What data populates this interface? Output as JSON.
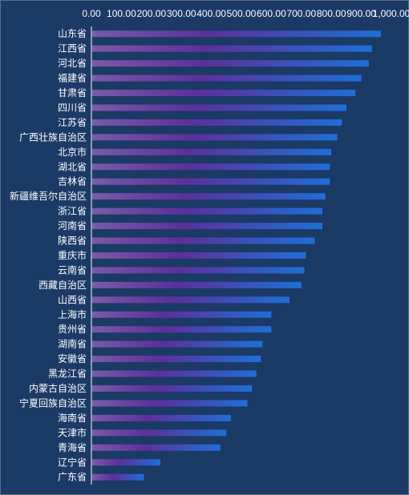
{
  "chart_data": {
    "type": "bar",
    "orientation": "horizontal",
    "title": "",
    "xlabel": "",
    "ylabel": "",
    "xlim": [
      0,
      1000
    ],
    "x_ticks": [
      "0.00",
      "100.00",
      "200.00",
      "300.00",
      "400.00",
      "500.00",
      "600.00",
      "700.00",
      "800.00",
      "900.00",
      "1,000.00"
    ],
    "x_axis_position": "top",
    "grid": false,
    "legend": "none",
    "categories": [
      "山东省",
      "江西省",
      "河北省",
      "福建省",
      "甘肃省",
      "四川省",
      "江苏省",
      "广西壮族自治区",
      "北京市",
      "湖北省",
      "吉林省",
      "新疆维吾尔自治区",
      "浙江省",
      "河南省",
      "陕西省",
      "重庆市",
      "云南省",
      "西藏自治区",
      "山西省",
      "上海市",
      "贵州省",
      "湖南省",
      "安徽省",
      "黑龙江省",
      "内蒙古自治区",
      "宁夏回族自治区",
      "海南省",
      "天津市",
      "青海省",
      "辽宁省",
      "广东省"
    ],
    "values": [
      965,
      935,
      925,
      900,
      880,
      850,
      835,
      820,
      800,
      795,
      795,
      780,
      770,
      770,
      745,
      715,
      710,
      700,
      660,
      600,
      600,
      570,
      565,
      550,
      535,
      520,
      465,
      450,
      430,
      230,
      175
    ],
    "colors": {
      "background": "#1b3a66",
      "bar_start": "#7a5aa8",
      "bar_mid": "#5b2f9a",
      "bar_end": "#1f6fd6",
      "axis": "#ffffff",
      "text": "#ffffff"
    }
  }
}
